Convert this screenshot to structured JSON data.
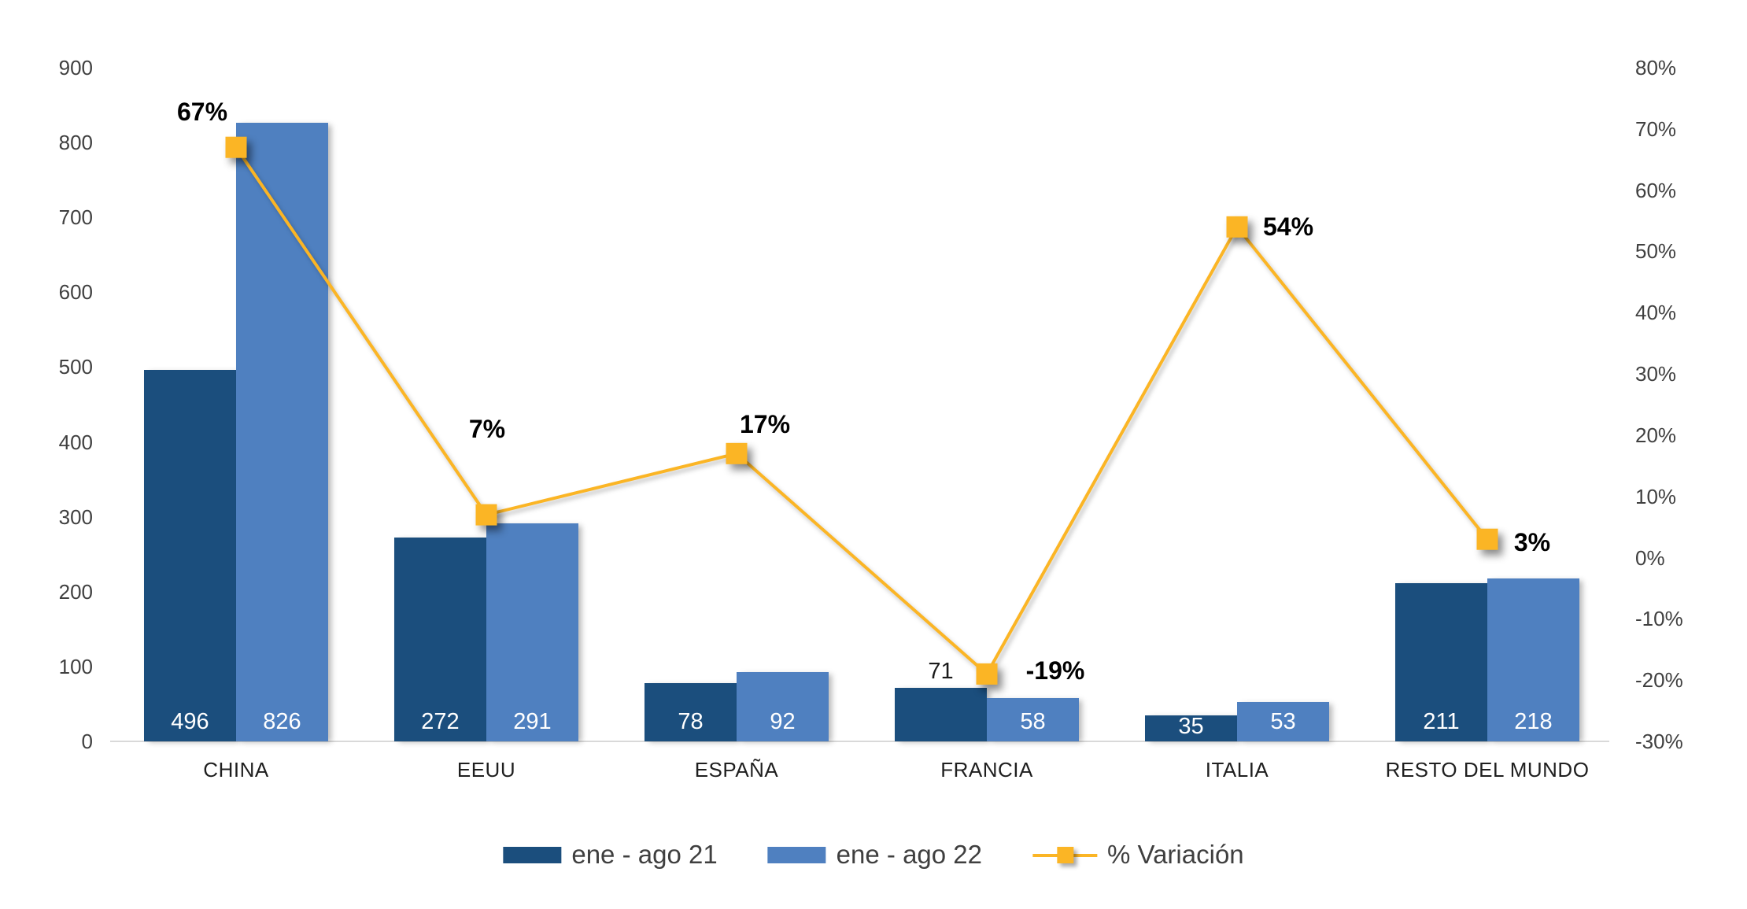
{
  "chart_data": {
    "type": "bar+line-combo",
    "title": "",
    "categories": [
      "CHINA",
      "EEUU",
      "ESPAÑA",
      "FRANCIA",
      "ITALIA",
      "RESTO DEL MUNDO"
    ],
    "series": [
      {
        "name": "ene - ago 21",
        "type": "bar",
        "color": "#1B4E7D",
        "values": [
          496,
          272,
          78,
          71,
          35,
          211
        ]
      },
      {
        "name": "ene - ago 22",
        "type": "bar",
        "color": "#4F80C0",
        "values": [
          826,
          291,
          92,
          58,
          53,
          218
        ]
      },
      {
        "name": "% Variación",
        "type": "line",
        "color": "#FBB525",
        "values": [
          67,
          7,
          17,
          -19,
          54,
          3
        ],
        "point_labels": [
          "67%",
          "7%",
          "17%",
          "-19%",
          "54%",
          "3%"
        ]
      }
    ],
    "left_axis": {
      "min": 0,
      "max": 900,
      "ticks": [
        "900",
        "800",
        "700",
        "600",
        "500",
        "400",
        "300",
        "200",
        "100",
        "0"
      ]
    },
    "right_axis": {
      "min": -30,
      "max": 80,
      "ticks": [
        "80%",
        "70%",
        "60%",
        "50%",
        "40%",
        "30%",
        "20%",
        "10%",
        "0%",
        "-10%",
        "-20%",
        "-30%"
      ]
    },
    "legend_position": "bottom",
    "grid": "off",
    "bar_value_label_color": "#ffffff",
    "outside_value_label_color": "#1a1a1a",
    "axis_line_color": "#d9d9d9"
  }
}
